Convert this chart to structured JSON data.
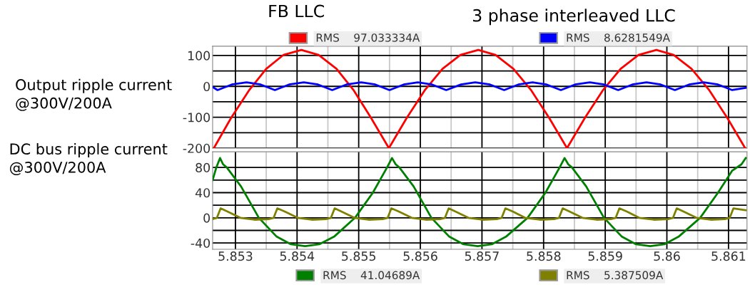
{
  "chart_data": [
    {
      "type": "line",
      "annotations": [
        "FB LLC",
        "3 phase interleaved LLC",
        "Output ripple current\n@300V/200A"
      ],
      "legend": "top",
      "grid": true,
      "tick_labels": "y",
      "xlim": [
        5.85263,
        5.8613
      ],
      "xticks": [
        5.853,
        {
          "value": 5.8535,
          "label": null
        },
        5.854,
        {
          "value": 5.8545,
          "label": null
        },
        5.855,
        {
          "value": 5.8555,
          "label": null
        },
        5.856,
        {
          "value": 5.8565,
          "label": null
        },
        5.857,
        {
          "value": 5.8575,
          "label": null
        },
        5.858,
        {
          "value": 5.8585,
          "label": null
        },
        5.859,
        {
          "value": 5.8595,
          "label": null
        },
        5.86,
        {
          "value": 5.8605,
          "label": null
        },
        5.861
      ],
      "ylim": [
        -200,
        130
      ],
      "yticks": [
        -200,
        {
          "value": -150,
          "label": null
        },
        -100,
        {
          "value": -50,
          "label": null
        },
        0,
        {
          "value": 50,
          "label": null
        },
        100
      ],
      "series": [
        {
          "name": "RMS    97.033334A",
          "color": "#ff0000",
          "x": [
            5.85265,
            5.85293,
            5.85322,
            5.8535,
            5.85378,
            5.85407,
            5.85435,
            5.85464,
            5.85492,
            5.8552,
            5.85549,
            5.85578,
            5.85607,
            5.85636,
            5.85665,
            5.85694,
            5.85722,
            5.85751,
            5.8578,
            5.85809,
            5.85838,
            5.85867,
            5.85896,
            5.85925,
            5.85954,
            5.85983,
            5.86011,
            5.8604,
            5.86069,
            5.86098,
            5.86127
          ],
          "values": [
            -200,
            -102,
            -13,
            57,
            102,
            118,
            102,
            57,
            -13,
            -102,
            -200,
            -102,
            -13,
            57,
            102,
            118,
            102,
            57,
            -13,
            -102,
            -200,
            -102,
            -13,
            57,
            102,
            118,
            102,
            57,
            -13,
            -102,
            -200
          ]
        },
        {
          "name": "RMS    8.6281549A",
          "color": "#0000ff",
          "x": [
            5.85263,
            5.85271,
            5.85294,
            5.85318,
            5.85341,
            5.85364,
            5.85387,
            5.85411,
            5.85434,
            5.85457,
            5.8548,
            5.85504,
            5.85527,
            5.8555,
            5.85573,
            5.85596,
            5.85619,
            5.85642,
            5.85666,
            5.85689,
            5.85713,
            5.85736,
            5.85759,
            5.85782,
            5.85805,
            5.85828,
            5.85851,
            5.85875,
            5.85898,
            5.85921,
            5.85944,
            5.85967,
            5.8599,
            5.86013,
            5.86036,
            5.8606,
            5.86083,
            5.86106,
            5.86128
          ],
          "values": [
            -2,
            -12,
            6,
            13,
            6,
            -12,
            6,
            13,
            6,
            -12,
            6,
            13,
            6,
            -12,
            6,
            13,
            6,
            -12,
            6,
            13,
            6,
            -12,
            6,
            13,
            6,
            -12,
            6,
            13,
            6,
            -12,
            6,
            13,
            6,
            -12,
            6,
            13,
            6,
            -12,
            -5
          ]
        }
      ]
    },
    {
      "type": "line",
      "annotations": [
        "DC bus ripple current\n@300V/200A"
      ],
      "legend": "bottom",
      "grid": true,
      "xlim": [
        5.85263,
        5.8613
      ],
      "xticks": [
        5.853,
        {
          "value": 5.8535,
          "label": null
        },
        5.854,
        {
          "value": 5.8545,
          "label": null
        },
        5.855,
        {
          "value": 5.8555,
          "label": null
        },
        5.856,
        {
          "value": 5.8565,
          "label": null
        },
        5.857,
        {
          "value": 5.8575,
          "label": null
        },
        5.858,
        {
          "value": 5.8585,
          "label": null
        },
        5.859,
        {
          "value": 5.8595,
          "label": null
        },
        5.86,
        {
          "value": 5.8605,
          "label": null
        },
        5.861
      ],
      "ylim": [
        -50,
        105
      ],
      "yticks": [
        -40,
        {
          "value": -20,
          "label": null
        },
        0,
        {
          "value": 20,
          "label": null
        },
        40,
        {
          "value": 60,
          "label": null
        },
        80
      ],
      "series": [
        {
          "name": "RMS    41.04689A",
          "color": "#008000",
          "x": [
            5.85263,
            5.85269,
            5.85275,
            5.8528,
            5.85286,
            5.85309,
            5.85338,
            5.85367,
            5.8539,
            5.85413,
            5.85436,
            5.8546,
            5.85494,
            5.85523,
            5.85546,
            5.85554,
            5.8556,
            5.85566,
            5.85589,
            5.85618,
            5.85647,
            5.8567,
            5.85693,
            5.85716,
            5.85739,
            5.85774,
            5.85803,
            5.85826,
            5.85834,
            5.8584,
            5.85846,
            5.85869,
            5.85898,
            5.85927,
            5.8595,
            5.85973,
            5.85996,
            5.86019,
            5.86054,
            5.86083,
            5.86106,
            5.86121,
            5.86128
          ],
          "values": [
            60,
            80,
            95,
            85,
            80,
            50,
            0,
            -30,
            -42,
            -45,
            -42,
            -30,
            0,
            40,
            80,
            95,
            85,
            80,
            50,
            0,
            -30,
            -42,
            -45,
            -42,
            -30,
            0,
            40,
            80,
            95,
            85,
            80,
            50,
            0,
            -30,
            -42,
            -45,
            -42,
            -30,
            0,
            40,
            75,
            85,
            95
          ]
        },
        {
          "name": "RMS    5.387509A",
          "color": "#808000",
          "x": [
            5.85263,
            5.8527,
            5.85276,
            5.85287,
            5.85308,
            5.85331,
            5.85354,
            5.85362,
            5.85368,
            5.8538,
            5.85401,
            5.85424,
            5.85447,
            5.85455,
            5.85461,
            5.85472,
            5.85493,
            5.85516,
            5.85539,
            5.85547,
            5.85553,
            5.85565,
            5.85586,
            5.85609,
            5.85632,
            5.8564,
            5.85646,
            5.85657,
            5.85678,
            5.85701,
            5.85724,
            5.85732,
            5.85738,
            5.8575,
            5.8577,
            5.85794,
            5.85817,
            5.85825,
            5.85831,
            5.85842,
            5.85863,
            5.85886,
            5.85909,
            5.85917,
            5.85923,
            5.85935,
            5.85955,
            5.85979,
            5.86002,
            5.8601,
            5.86016,
            5.86027,
            5.86048,
            5.86071,
            5.86094,
            5.86102,
            5.86108,
            5.86128
          ],
          "values": [
            -2,
            0,
            15,
            10,
            0,
            -3,
            -2,
            0,
            15,
            10,
            0,
            -3,
            -2,
            0,
            15,
            10,
            0,
            -3,
            -2,
            0,
            15,
            10,
            0,
            -3,
            -2,
            0,
            15,
            10,
            0,
            -3,
            -2,
            0,
            15,
            10,
            0,
            -3,
            -2,
            0,
            15,
            10,
            0,
            -3,
            -2,
            0,
            15,
            10,
            0,
            -3,
            -2,
            0,
            15,
            10,
            0,
            -3,
            -2,
            0,
            15,
            12
          ]
        }
      ]
    }
  ]
}
